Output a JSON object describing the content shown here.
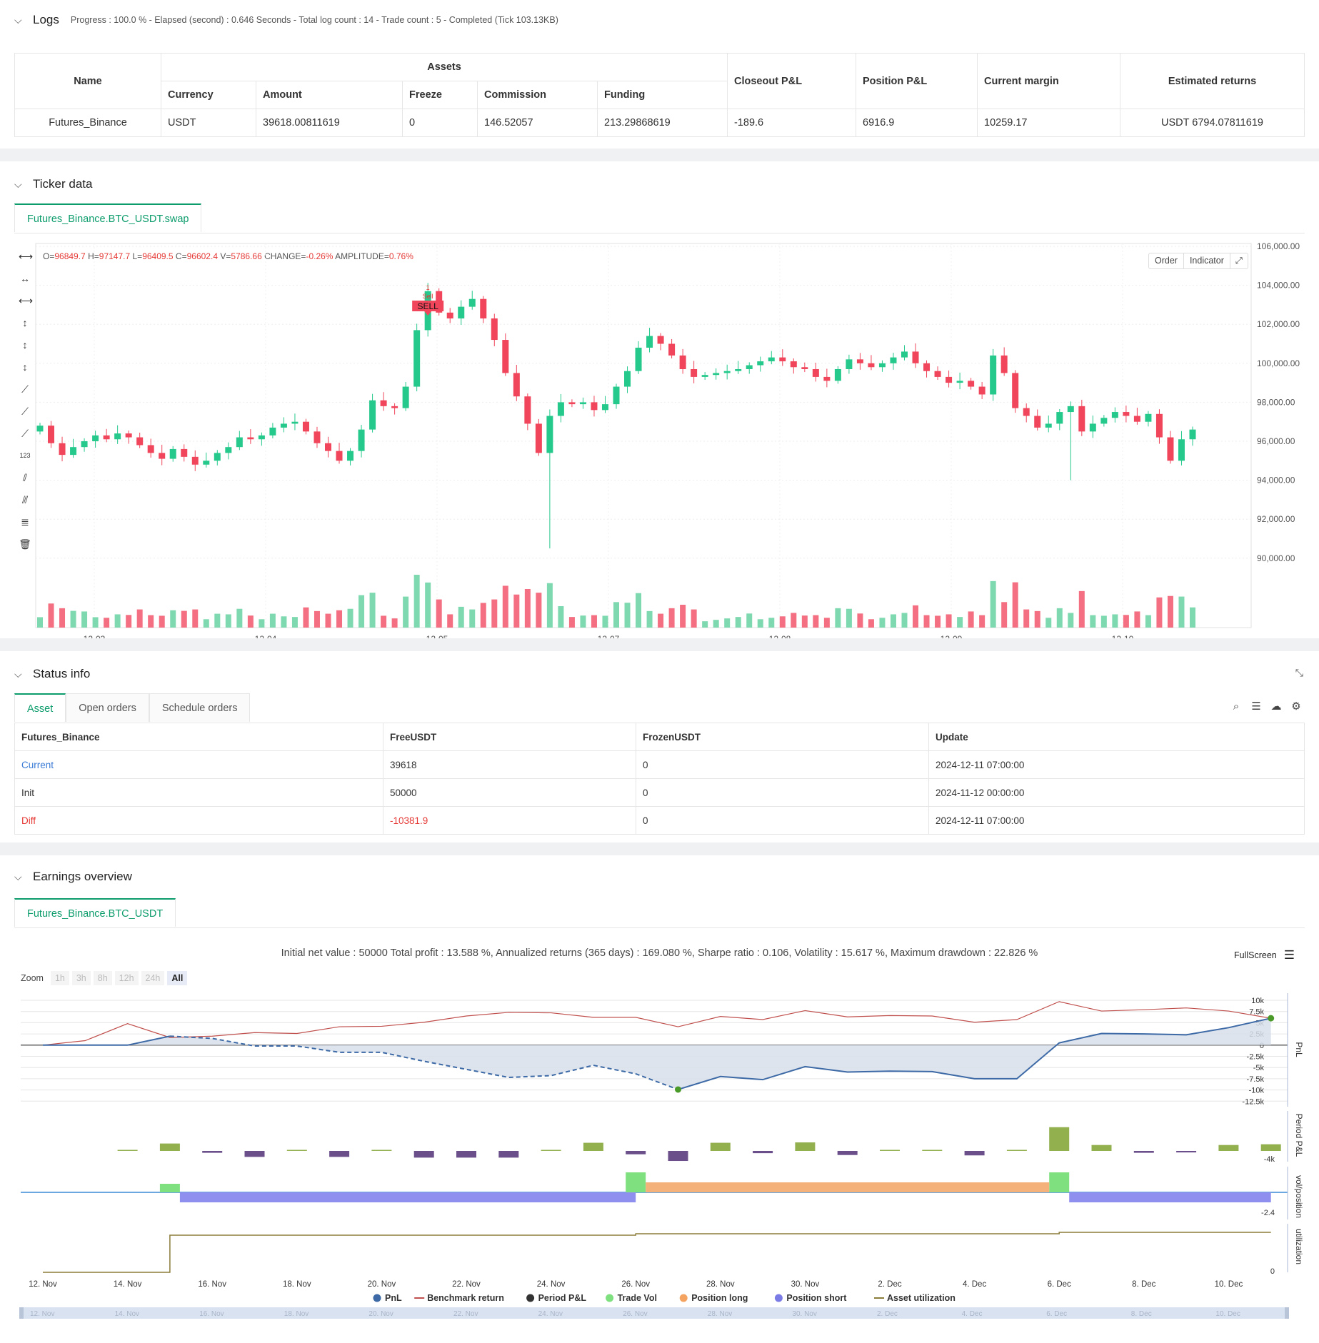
{
  "logs": {
    "title": "Logs",
    "meta": "Progress : 100.0 % - Elapsed (second) : 0.646   Seconds - Total log count : 14 - Trade count : 5 - Completed (Tick 103.13KB)",
    "headers": {
      "name": "Name",
      "assets": "Assets",
      "currency": "Currency",
      "amount": "Amount",
      "freeze": "Freeze",
      "commission": "Commission",
      "funding": "Funding",
      "closeout": "Closeout P&L",
      "position": "Position P&L",
      "margin": "Current margin",
      "returns": "Estimated returns"
    },
    "row": {
      "name": "Futures_Binance",
      "currency": "USDT",
      "amount": "39618.00811619",
      "freeze": "0",
      "commission": "146.52057",
      "funding": "213.29868619",
      "closeout": "-189.6",
      "position": "6916.9",
      "margin": "10259.17",
      "returns": "USDT 6794.07811619"
    }
  },
  "ticker": {
    "title": "Ticker data",
    "tab": "Futures_Binance.BTC_USDT.swap",
    "ohlc": {
      "o_label": "O=",
      "o": "96849.7",
      "h_label": "H=",
      "h": "97147.7",
      "l_label": "L=",
      "l": "96409.5",
      "c_label": "C=",
      "c": "96602.4",
      "v_label": "V=",
      "v": "5786.66",
      "chg_label": "CHANGE=",
      "chg": "-0.26%",
      "amp_label": "AMPLITUDE=",
      "amp": "0.76%"
    },
    "buttons": {
      "order": "Order",
      "indicator": "Indicator"
    },
    "marker": {
      "count": "1",
      "side": "Sell",
      "label": "SELL"
    },
    "price_axis": [
      "106,000.00",
      "104,000.00",
      "102,000.00",
      "100,000.00",
      "98,000.00",
      "96,000.00",
      "94,000.00",
      "92,000.00",
      "90,000.00"
    ],
    "date_axis": [
      "12-03",
      "12-04",
      "12-05",
      "12-07",
      "12-08",
      "12-09",
      "12-10"
    ]
  },
  "status": {
    "title": "Status info",
    "tabs": [
      "Asset",
      "Open orders",
      "Schedule orders"
    ],
    "headers": [
      "Futures_Binance",
      "FreeUSDT",
      "FrozenUSDT",
      "Update"
    ],
    "rows": [
      {
        "label": "Current",
        "free": "39618",
        "frozen": "0",
        "update": "2024-12-11 07:00:00"
      },
      {
        "label": "Init",
        "free": "50000",
        "frozen": "0",
        "update": "2024-11-12 00:00:00"
      },
      {
        "label": "Diff",
        "free": "-10381.9",
        "frozen": "0",
        "update": "2024-12-11 07:00:00"
      }
    ]
  },
  "earnings": {
    "title": "Earnings overview",
    "tab": "Futures_Binance.BTC_USDT",
    "summary": "Initial net value : 50000 Total profit : 13.588 %, Annualized returns (365 days) : 169.080 %, Sharpe ratio : 0.106, Volatility : 15.617 %, Maximum drawdown : 22.826 %",
    "fullscreen": "FullScreen",
    "zoom_label": "Zoom",
    "zoom_options": [
      "1h",
      "3h",
      "8h",
      "12h",
      "24h",
      "All"
    ],
    "pnl_axis": [
      "10k",
      "7.5k",
      "5k",
      "2.5k",
      "0",
      "-2.5k",
      "-5k",
      "-7.5k",
      "-10k",
      "-12.5k"
    ],
    "axis_titles": {
      "pnl": "PnL",
      "period": "Period P&L",
      "vol": "vol/position",
      "util": "utilization"
    },
    "period_tick": "-4k",
    "vol_tick": "-2.4",
    "util_tick": "0",
    "x_axis": [
      "12. Nov",
      "14. Nov",
      "16. Nov",
      "18. Nov",
      "20. Nov",
      "22. Nov",
      "24. Nov",
      "26. Nov",
      "28. Nov",
      "30. Nov",
      "2. Dec",
      "4. Dec",
      "6. Dec",
      "8. Dec",
      "10. Dec"
    ],
    "legend": [
      {
        "label": "PnL",
        "color": "#3d6aa6",
        "kind": "dot"
      },
      {
        "label": "Benchmark return",
        "color": "#c0504d",
        "kind": "line"
      },
      {
        "label": "Period P&L",
        "color": "#333333",
        "kind": "dot"
      },
      {
        "label": "Trade Vol",
        "color": "#7ee07e",
        "kind": "dot"
      },
      {
        "label": "Position long",
        "color": "#f4a460",
        "kind": "dot"
      },
      {
        "label": "Position short",
        "color": "#7b7be6",
        "kind": "dot"
      },
      {
        "label": "Asset utilization",
        "color": "#8b7d3a",
        "kind": "line"
      }
    ]
  },
  "chart_data": [
    {
      "type": "candlestick",
      "title": "",
      "x": [
        "12-03",
        "12-04",
        "12-05",
        "12-07",
        "12-08",
        "12-09",
        "12-10"
      ],
      "ylim": [
        89000,
        106500
      ],
      "closes": [
        96800,
        95900,
        95300,
        95700,
        96000,
        96300,
        96100,
        96400,
        96200,
        95800,
        95400,
        95100,
        95600,
        95200,
        94800,
        95000,
        95400,
        95700,
        96200,
        96100,
        96300,
        96700,
        96900,
        97000,
        96500,
        95900,
        95500,
        95000,
        95500,
        96600,
        98100,
        97800,
        97700,
        98800,
        101700,
        103700,
        102600,
        102300,
        102900,
        103300,
        102300,
        101200,
        99500,
        98300,
        96900,
        95400,
        97300,
        98000,
        97900,
        98000,
        97600,
        97900,
        98800,
        99600,
        100800,
        101400,
        101000,
        100400,
        99700,
        99300,
        99400,
        99500,
        99600,
        99700,
        99900,
        100100,
        100300,
        100100,
        99800,
        99700,
        99300,
        99100,
        99700,
        100200,
        100000,
        99800,
        100000,
        100300,
        100600,
        100000,
        99600,
        99300,
        99000,
        99100,
        98800,
        98400,
        100400,
        99500,
        97700,
        97300,
        96700,
        96900,
        97500,
        97800,
        96500,
        96900,
        97200,
        97500,
        97300,
        97000,
        97400,
        96200,
        95000,
        96100,
        96600
      ]
    },
    {
      "type": "line",
      "title": "",
      "x": [
        "12. Nov",
        "13. Nov",
        "14. Nov",
        "15. Nov",
        "16. Nov",
        "17. Nov",
        "18. Nov",
        "19. Nov",
        "20. Nov",
        "21. Nov",
        "22. Nov",
        "23. Nov",
        "24. Nov",
        "25. Nov",
        "26. Nov",
        "27. Nov",
        "28. Nov",
        "29. Nov",
        "30. Nov",
        "1. Dec",
        "2. Dec",
        "3. Dec",
        "4. Dec",
        "5. Dec",
        "6. Dec",
        "7. Dec",
        "8. Dec",
        "9. Dec",
        "10. Dec",
        "11. Dec"
      ],
      "series": [
        {
          "name": "PnL",
          "values": [
            0,
            0,
            0,
            2000,
            1500,
            -200,
            -200,
            -1600,
            -1600,
            -3600,
            -5400,
            -7200,
            -6800,
            -4500,
            -6400,
            -9900,
            -7000,
            -7700,
            -4800,
            -6000,
            -5800,
            -5900,
            -7500,
            -7500,
            500,
            2600,
            2500,
            2300,
            3900,
            6000
          ]
        },
        {
          "name": "Benchmark return",
          "values": [
            0,
            1000,
            4800,
            1700,
            2000,
            2800,
            2600,
            4100,
            4200,
            5100,
            6500,
            7300,
            7200,
            6200,
            6200,
            4100,
            6400,
            5700,
            7700,
            6300,
            6600,
            6500,
            5100,
            5700,
            9700,
            7600,
            7900,
            8300,
            7600,
            6000
          ]
        }
      ]
    },
    {
      "type": "bar",
      "title": "",
      "x": [
        "14. Nov",
        "15. Nov",
        "16. Nov",
        "17. Nov",
        "18. Nov",
        "19. Nov",
        "20. Nov",
        "21. Nov",
        "22. Nov",
        "23. Nov",
        "24. Nov",
        "25. Nov",
        "26. Nov",
        "27. Nov",
        "28. Nov",
        "29. Nov",
        "30. Nov",
        "1. Dec",
        "2. Dec",
        "3. Dec",
        "4. Dec",
        "5. Dec",
        "6. Dec",
        "7. Dec",
        "8. Dec",
        "9. Dec",
        "10. Dec",
        "11. Dec"
      ],
      "series": [
        {
          "name": "Period P&L",
          "values": [
            0,
            2000,
            -500,
            -1600,
            100,
            -1600,
            0,
            -1800,
            -1800,
            -1800,
            100,
            2200,
            -900,
            -2700,
            2200,
            -600,
            2300,
            -1100,
            100,
            0,
            -1200,
            0,
            6400,
            1600,
            -500,
            -400,
            1600,
            1800
          ]
        }
      ]
    }
  ]
}
